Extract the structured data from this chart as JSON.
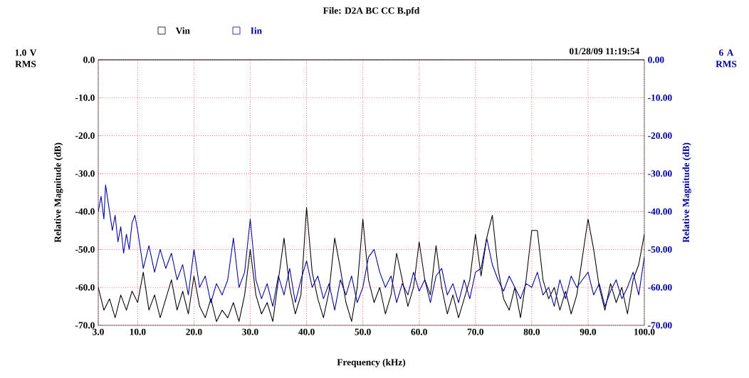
{
  "chart_data": {
    "type": "line",
    "title": "File: D2A BC CC B.pfd",
    "xlabel": "Frequency (kHz)",
    "ylabel": "Relative Magnitude (dB)",
    "y2label": "Relative Magnitude (dB)",
    "annotations": [
      "1.0 V RMS",
      "6 A RMS",
      "01/28/09 11:19:54"
    ],
    "xlim": [
      3,
      100
    ],
    "ylim": [
      -70,
      0
    ],
    "y2lim": [
      -70,
      0
    ],
    "xticks": [
      {
        "value": 3,
        "label": "3.0"
      },
      {
        "value": 10,
        "label": "10.0"
      },
      {
        "value": 20,
        "label": "20.0"
      },
      {
        "value": 30,
        "label": "30.0"
      },
      {
        "value": 40,
        "label": "40.0"
      },
      {
        "value": 50,
        "label": "50.0"
      },
      {
        "value": 60,
        "label": "60.0"
      },
      {
        "value": 70,
        "label": "70.0"
      },
      {
        "value": 80,
        "label": "80.0"
      },
      {
        "value": 90,
        "label": "90.0"
      },
      {
        "value": 100,
        "label": "100.0"
      }
    ],
    "yticks": [
      {
        "value": 0,
        "label": "0.0"
      },
      {
        "value": -10,
        "label": "-10.0"
      },
      {
        "value": -20,
        "label": "-20.0"
      },
      {
        "value": -30,
        "label": "-30.0"
      },
      {
        "value": -40,
        "label": "-40.0"
      },
      {
        "value": -50,
        "label": "-50.0"
      },
      {
        "value": -60,
        "label": "-60.0"
      },
      {
        "value": -70,
        "label": "-70.0"
      }
    ],
    "y2ticks": [
      {
        "value": 0,
        "label": "0.00"
      },
      {
        "value": -10,
        "label": "-10.00"
      },
      {
        "value": -20,
        "label": "-20.00"
      },
      {
        "value": -30,
        "label": "-30.00"
      },
      {
        "value": -40,
        "label": "-40.00"
      },
      {
        "value": -50,
        "label": "-50.00"
      },
      {
        "value": -60,
        "label": "-60.00"
      },
      {
        "value": -70,
        "label": "-70.00"
      }
    ],
    "grid": true,
    "legend": "top",
    "marker": "none",
    "line_style": "solid",
    "series": [
      {
        "name": "Vin",
        "color": "#000000",
        "x": [
          3,
          4,
          5,
          6,
          7,
          8,
          9,
          10,
          11,
          12,
          13,
          14,
          15,
          16,
          17,
          18,
          19,
          20,
          21,
          22,
          23,
          24,
          25,
          26,
          27,
          28,
          29,
          30,
          31,
          32,
          33,
          34,
          35,
          36,
          37,
          38,
          39,
          40,
          41,
          42,
          43,
          44,
          45,
          46,
          47,
          48,
          49,
          50,
          51,
          52,
          53,
          54,
          55,
          56,
          57,
          58,
          59,
          60,
          61,
          62,
          63,
          64,
          65,
          66,
          67,
          68,
          69,
          70,
          71,
          72,
          73,
          74,
          75,
          76,
          77,
          78,
          79,
          80,
          81,
          82,
          83,
          84,
          85,
          86,
          87,
          88,
          89,
          90,
          91,
          92,
          93,
          94,
          95,
          96,
          97,
          98,
          99,
          100
        ],
        "values": [
          -60,
          -66,
          -63,
          -68,
          -62,
          -66,
          -61,
          -64,
          -56,
          -66,
          -62,
          -68,
          -63,
          -58,
          -66,
          -61,
          -67,
          -57,
          -65,
          -68,
          -63,
          -69,
          -66,
          -68,
          -64,
          -69,
          -62,
          -50,
          -62,
          -67,
          -64,
          -69,
          -58,
          -47,
          -60,
          -67,
          -62,
          -39,
          -56,
          -63,
          -68,
          -61,
          -47,
          -55,
          -64,
          -69,
          -60,
          -42,
          -58,
          -64,
          -60,
          -67,
          -62,
          -51,
          -58,
          -65,
          -60,
          -48,
          -58,
          -62,
          -49,
          -60,
          -67,
          -62,
          -68,
          -63,
          -58,
          -46,
          -57,
          -47,
          -41,
          -55,
          -63,
          -66,
          -60,
          -68,
          -58,
          -45,
          -45,
          -58,
          -63,
          -60,
          -66,
          -61,
          -67,
          -62,
          -52,
          -42,
          -50,
          -60,
          -66,
          -59,
          -64,
          -60,
          -67,
          -58,
          -54,
          -46
        ]
      },
      {
        "name": "Iin",
        "color": "#00009c",
        "axis": "y2",
        "x": [
          3,
          3.5,
          4,
          4.3,
          5,
          5.5,
          6,
          6.5,
          7,
          7.5,
          8,
          8.5,
          9,
          9.5,
          10,
          11,
          12,
          13,
          14,
          15,
          16,
          17,
          18,
          19,
          20,
          21,
          22,
          23,
          24,
          25,
          26,
          27,
          28,
          29,
          30,
          31,
          32,
          33,
          34,
          35,
          36,
          37,
          38,
          39,
          40,
          41,
          42,
          43,
          44,
          45,
          46,
          47,
          48,
          49,
          50,
          51,
          52,
          53,
          54,
          55,
          56,
          57,
          58,
          59,
          60,
          61,
          62,
          63,
          64,
          65,
          66,
          67,
          68,
          69,
          70,
          71,
          72,
          73,
          74,
          75,
          76,
          77,
          78,
          79,
          80,
          81,
          82,
          83,
          84,
          85,
          86,
          87,
          88,
          89,
          90,
          91,
          92,
          93,
          94,
          95,
          96,
          97,
          98,
          99,
          100
        ],
        "values": [
          -40,
          -36,
          -42,
          -33,
          -40,
          -45,
          -41,
          -48,
          -44,
          -51,
          -46,
          -50,
          -43,
          -41,
          -45,
          -55,
          -49,
          -56,
          -50,
          -55,
          -51,
          -58,
          -54,
          -62,
          -50,
          -60,
          -57,
          -64,
          -59,
          -62,
          -58,
          -47,
          -60,
          -56,
          -42,
          -58,
          -63,
          -59,
          -65,
          -57,
          -62,
          -55,
          -64,
          -58,
          -53,
          -60,
          -57,
          -63,
          -59,
          -66,
          -58,
          -62,
          -57,
          -64,
          -60,
          -52,
          -50,
          -56,
          -60,
          -57,
          -64,
          -59,
          -62,
          -56,
          -61,
          -58,
          -64,
          -57,
          -55,
          -62,
          -59,
          -64,
          -58,
          -63,
          -56,
          -55,
          -47,
          -54,
          -58,
          -61,
          -57,
          -60,
          -63,
          -59,
          -60,
          -56,
          -62,
          -60,
          -65,
          -58,
          -63,
          -57,
          -60,
          -58,
          -56,
          -62,
          -59,
          -65,
          -61,
          -58,
          -63,
          -60,
          -56,
          -62,
          -52
        ]
      }
    ]
  }
}
